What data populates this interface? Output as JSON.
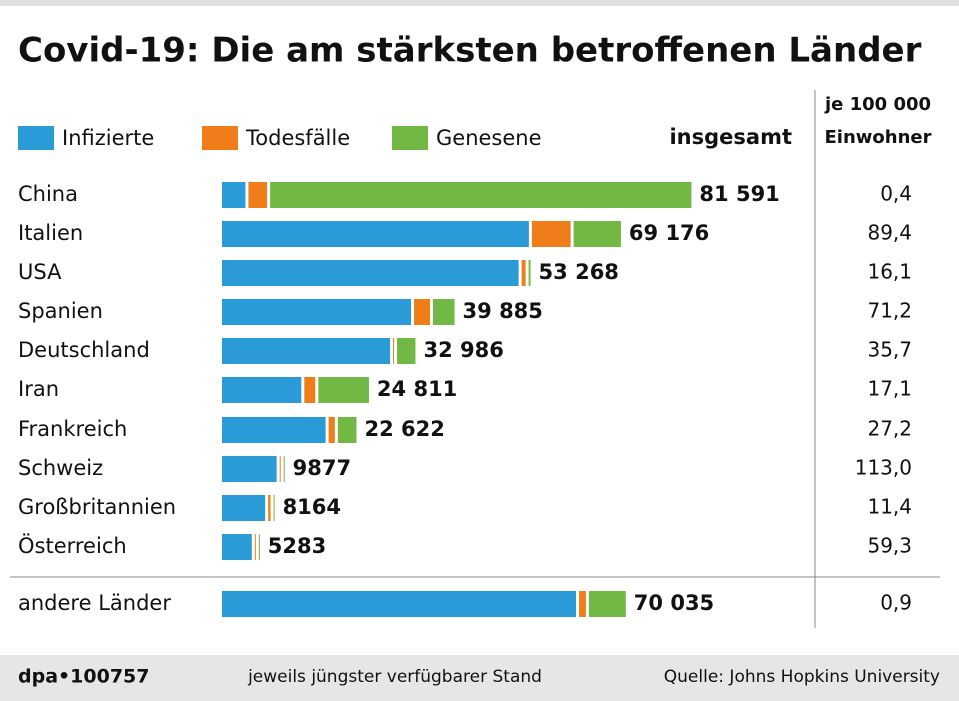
{
  "chart_data": {
    "type": "bar",
    "orientation": "horizontal",
    "stacked": true,
    "title": "Covid-19: Die am stärksten betroffenen Länder",
    "categories": [
      "China",
      "Italien",
      "USA",
      "Spanien",
      "Deutschland",
      "Iran",
      "Frankreich",
      "Schweiz",
      "Großbritannien",
      "Österreich",
      "andere Länder"
    ],
    "series": [
      {
        "name": "Infizierte",
        "color": "#2a9bd6",
        "values": [
          4129,
          54030,
          52223,
          33283,
          29586,
          13964,
          18239,
          9624,
          7601,
          5246,
          62335
        ]
      },
      {
        "name": "Todesfälle",
        "color": "#ef7d1a",
        "values": [
          3281,
          6820,
          698,
          2808,
          157,
          1934,
          1102,
          122,
          423,
          28,
          1200
        ]
      },
      {
        "name": "Genesene",
        "color": "#72b844",
        "values": [
          74181,
          8326,
          347,
          3794,
          3243,
          8913,
          3281,
          131,
          140,
          9,
          6500
        ]
      }
    ],
    "totals": {
      "header": "insgesamt",
      "values": [
        81591,
        69176,
        53268,
        39885,
        32986,
        24811,
        22622,
        9877,
        8164,
        5283,
        70035
      ],
      "value_labels": [
        "81 591",
        "69 176",
        "53 268",
        "39 885",
        "32 986",
        "24 811",
        "22 622",
        "9877",
        "8164",
        "5283",
        "70 035"
      ]
    },
    "per_100000": {
      "header": [
        "je 100 000",
        "Einwohner"
      ],
      "values": [
        0.4,
        89.4,
        16.1,
        71.2,
        35.7,
        17.1,
        27.2,
        113.0,
        11.4,
        59.3,
        0.9
      ],
      "value_labels": [
        "0,4",
        "89,4",
        "16,1",
        "71,2",
        "35,7",
        "17,1",
        "27,2",
        "113,0",
        "11,4",
        "59,3",
        "0,9"
      ]
    },
    "footer": {
      "id": "dpa•100757",
      "note": "jeweils jüngster verfügbarer Stand",
      "source": "Quelle: Johns Hopkins University"
    }
  }
}
